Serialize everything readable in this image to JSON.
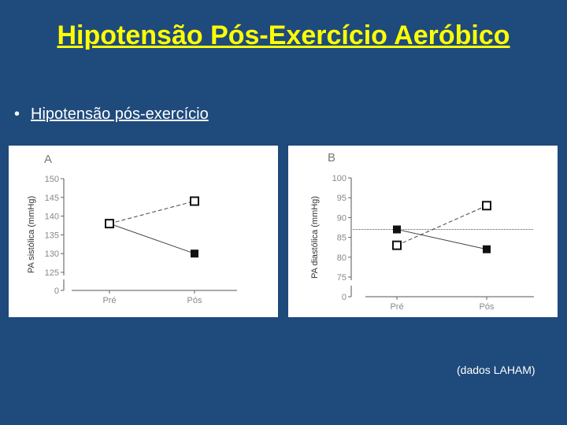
{
  "slide": {
    "title": "Hipotensão Pós-Exercício Aeróbico",
    "bullet": "Hipotensão pós-exercício",
    "source": "(dados LAHAM)"
  },
  "chart_data": [
    {
      "type": "line",
      "panel_label": "A",
      "title": "",
      "ylabel": "PA sistólica (mmHg)",
      "categories": [
        "Pré",
        "Pós"
      ],
      "yticks": [
        0,
        125,
        130,
        135,
        140,
        145,
        150
      ],
      "ylim": [
        125,
        150
      ],
      "axis_break": true,
      "series": [
        {
          "marker": "filled-square",
          "line": "solid",
          "values": [
            138,
            130
          ]
        },
        {
          "marker": "open-square",
          "line": "dashed",
          "values": [
            138,
            144
          ]
        }
      ]
    },
    {
      "type": "line",
      "panel_label": "B",
      "title": "",
      "ylabel": "PA diastólica (mmHg)",
      "categories": [
        "Pré",
        "Pós"
      ],
      "yticks": [
        0,
        75,
        80,
        85,
        90,
        95,
        100
      ],
      "ylim": [
        75,
        100
      ],
      "axis_break": true,
      "reference_line": 87,
      "series": [
        {
          "marker": "filled-square",
          "line": "solid",
          "values": [
            87,
            82
          ]
        },
        {
          "marker": "open-square",
          "line": "dashed",
          "values": [
            83,
            93
          ]
        }
      ]
    }
  ]
}
